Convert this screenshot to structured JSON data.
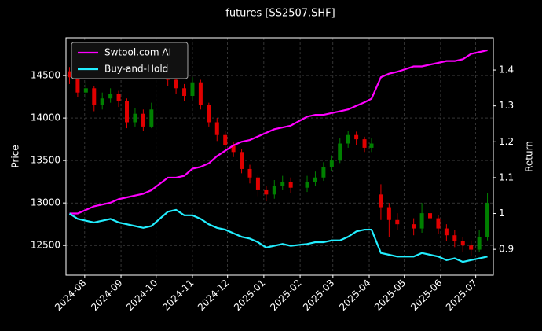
{
  "chart_data": {
    "type": "candlestick",
    "title": "futures [SS2507.SHF]",
    "ylabel": "Price",
    "y2label": "Return",
    "x": [
      "2024-07-19",
      "2024-07-26",
      "2024-08-02",
      "2024-08-09",
      "2024-08-16",
      "2024-08-23",
      "2024-08-30",
      "2024-09-06",
      "2024-09-13",
      "2024-09-20",
      "2024-09-27",
      "2024-10-11",
      "2024-10-18",
      "2024-10-25",
      "2024-11-01",
      "2024-11-08",
      "2024-11-15",
      "2024-11-22",
      "2024-11-29",
      "2024-12-06",
      "2024-12-13",
      "2024-12-20",
      "2024-12-27",
      "2025-01-03",
      "2025-01-10",
      "2025-01-17",
      "2025-01-24",
      "2025-02-07",
      "2025-02-14",
      "2025-02-21",
      "2025-02-28",
      "2025-03-07",
      "2025-03-14",
      "2025-03-21",
      "2025-03-28",
      "2025-04-03",
      "2025-04-11",
      "2025-04-18",
      "2025-04-25",
      "2025-05-09",
      "2025-05-16",
      "2025-05-23",
      "2025-05-30",
      "2025-06-06",
      "2025-06-13",
      "2025-06-20",
      "2025-06-27",
      "2025-07-04",
      "2025-07-11"
    ],
    "open": [
      14550,
      14480,
      14300,
      14350,
      14150,
      14230,
      14280,
      14200,
      13950,
      14050,
      13900,
      14500,
      14450,
      14350,
      14260,
      14420,
      14150,
      13950,
      13800,
      13680,
      13600,
      13400,
      13300,
      13150,
      13100,
      13200,
      13250,
      13180,
      13250,
      13300,
      13420,
      13500,
      13700,
      13800,
      13750,
      13650,
      13100,
      12950,
      12800,
      12750,
      12700,
      12880,
      12820,
      12700,
      12620,
      12550,
      12500,
      12450,
      12600
    ],
    "high": [
      14600,
      14520,
      14420,
      14380,
      14300,
      14350,
      14320,
      14230,
      14120,
      14100,
      14180,
      14560,
      14480,
      14400,
      14480,
      14450,
      14180,
      14000,
      13850,
      13720,
      13640,
      13450,
      13330,
      13200,
      13270,
      13320,
      13300,
      13320,
      13370,
      13480,
      13560,
      13760,
      13850,
      13840,
      13780,
      13760,
      13220,
      13000,
      12880,
      12820,
      13000,
      12950,
      12860,
      12750,
      12680,
      12600,
      12560,
      12680,
      13120
    ],
    "low": [
      14400,
      14250,
      14230,
      14080,
      14100,
      14180,
      14130,
      13880,
      13900,
      13850,
      13880,
      14380,
      14280,
      14200,
      14220,
      14100,
      13900,
      13730,
      13620,
      13540,
      13350,
      13230,
      13080,
      13020,
      13050,
      13150,
      13120,
      13130,
      13200,
      13260,
      13380,
      13470,
      13650,
      13680,
      13600,
      13600,
      12800,
      12600,
      12680,
      12620,
      12650,
      12760,
      12640,
      12550,
      12480,
      12420,
      12380,
      12420,
      12560
    ],
    "close": [
      14480,
      14300,
      14350,
      14150,
      14230,
      14280,
      14200,
      13950,
      14050,
      13900,
      14100,
      14450,
      14350,
      14260,
      14420,
      14150,
      13950,
      13800,
      13680,
      13600,
      13400,
      13300,
      13150,
      13100,
      13200,
      13250,
      13180,
      13250,
      13300,
      13420,
      13500,
      13700,
      13800,
      13750,
      13650,
      13700,
      12950,
      12800,
      12750,
      12700,
      12880,
      12820,
      12700,
      12620,
      12550,
      12500,
      12450,
      12600,
      13000
    ],
    "up_color": "#008000",
    "down_color": "#e00000",
    "series": [
      {
        "name": "Swtool.com AI",
        "color": "#ff00ff",
        "axis": "y2",
        "values": [
          1.0,
          1.0,
          1.01,
          1.02,
          1.025,
          1.03,
          1.04,
          1.045,
          1.05,
          1.055,
          1.065,
          1.1,
          1.1,
          1.105,
          1.125,
          1.13,
          1.14,
          1.16,
          1.175,
          1.19,
          1.2,
          1.205,
          1.215,
          1.225,
          1.235,
          1.24,
          1.245,
          1.27,
          1.275,
          1.275,
          1.28,
          1.285,
          1.29,
          1.3,
          1.31,
          1.32,
          1.38,
          1.39,
          1.395,
          1.41,
          1.41,
          1.415,
          1.42,
          1.425,
          1.425,
          1.43,
          1.445,
          1.45,
          1.455
        ]
      },
      {
        "name": "Buy-and-Hold",
        "color": "#22eeff",
        "axis": "y2",
        "values": [
          1.0,
          0.985,
          0.98,
          0.975,
          0.98,
          0.985,
          0.975,
          0.97,
          0.965,
          0.96,
          0.965,
          1.005,
          1.01,
          0.995,
          0.995,
          0.985,
          0.97,
          0.96,
          0.955,
          0.945,
          0.935,
          0.93,
          0.92,
          0.905,
          0.91,
          0.915,
          0.91,
          0.915,
          0.92,
          0.92,
          0.925,
          0.925,
          0.935,
          0.95,
          0.955,
          0.955,
          0.89,
          0.885,
          0.88,
          0.88,
          0.89,
          0.885,
          0.88,
          0.87,
          0.875,
          0.865,
          0.87,
          0.875,
          0.88
        ]
      }
    ],
    "xlim": [
      "2024-07-16",
      "2025-07-16"
    ],
    "xticks": [
      {
        "value": "2024-08-01",
        "label": "2024-08"
      },
      {
        "value": "2024-09-01",
        "label": "2024-09"
      },
      {
        "value": "2024-10-01",
        "label": "2024-10"
      },
      {
        "value": "2024-11-01",
        "label": "2024-11"
      },
      {
        "value": "2024-12-01",
        "label": "2024-12"
      },
      {
        "value": "2025-01-01",
        "label": "2025-01"
      },
      {
        "value": "2025-02-01",
        "label": "2025-02"
      },
      {
        "value": "2025-03-01",
        "label": "2025-03"
      },
      {
        "value": "2025-04-01",
        "label": "2025-04"
      },
      {
        "value": "2025-05-01",
        "label": "2025-05"
      },
      {
        "value": "2025-06-01",
        "label": "2025-06"
      },
      {
        "value": "2025-07-01",
        "label": "2025-07"
      }
    ],
    "ylim": [
      12150,
      14945
    ],
    "yticks": [
      12500,
      13000,
      13500,
      14000,
      14500
    ],
    "y2lim": [
      0.828,
      1.49
    ],
    "y2ticks": [
      0.9,
      1.0,
      1.1,
      1.2,
      1.3,
      1.4
    ],
    "grid": true,
    "legend": "upper left"
  }
}
